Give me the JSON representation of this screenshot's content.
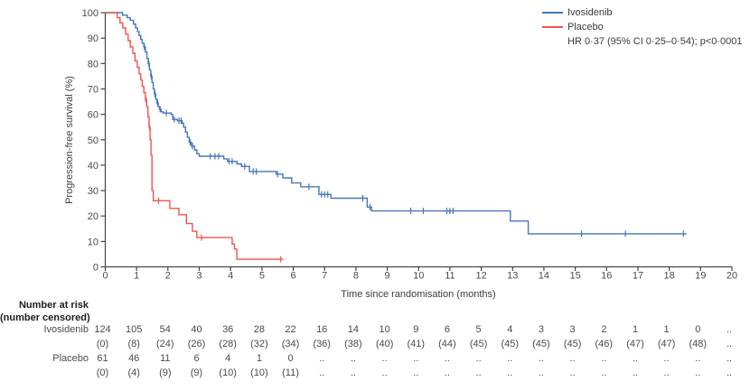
{
  "chart_data": {
    "type": "line",
    "variant": "kaplan-meier-step",
    "title": "",
    "xlabel": "Time since randomisation (months)",
    "ylabel": "Progression-free survival (%)",
    "xlim": [
      0,
      20
    ],
    "ylim": [
      0,
      100
    ],
    "xticks": [
      0,
      1,
      2,
      3,
      4,
      5,
      6,
      7,
      8,
      9,
      10,
      11,
      12,
      13,
      14,
      15,
      16,
      17,
      18,
      19,
      20
    ],
    "yticks": [
      0,
      10,
      20,
      30,
      40,
      50,
      60,
      70,
      80,
      90,
      100
    ],
    "grid": false,
    "legend_position": "top-right",
    "annotation": "HR 0·37 (95% CI 0·25–0·54); p<0·0001",
    "axis_color": "#454545",
    "series": [
      {
        "name": "Ivosidenib",
        "color": "#4577b9",
        "steps": [
          [
            0,
            100
          ],
          [
            0.5,
            100
          ],
          [
            0.55,
            99
          ],
          [
            0.7,
            98
          ],
          [
            0.8,
            97
          ],
          [
            0.9,
            95.5
          ],
          [
            0.97,
            94
          ],
          [
            1.03,
            92.5
          ],
          [
            1.08,
            91
          ],
          [
            1.13,
            89.5
          ],
          [
            1.18,
            88
          ],
          [
            1.23,
            86.5
          ],
          [
            1.28,
            84.5
          ],
          [
            1.33,
            82
          ],
          [
            1.37,
            80
          ],
          [
            1.41,
            77.5
          ],
          [
            1.45,
            75
          ],
          [
            1.49,
            72.5
          ],
          [
            1.53,
            70
          ],
          [
            1.57,
            68
          ],
          [
            1.61,
            66
          ],
          [
            1.65,
            64.5
          ],
          [
            1.69,
            63
          ],
          [
            1.73,
            62
          ],
          [
            1.78,
            61
          ],
          [
            1.85,
            60.5
          ],
          [
            2.1,
            60
          ],
          [
            2.15,
            58
          ],
          [
            2.3,
            57.5
          ],
          [
            2.45,
            56.5
          ],
          [
            2.5,
            55
          ],
          [
            2.56,
            53
          ],
          [
            2.62,
            51
          ],
          [
            2.68,
            49
          ],
          [
            2.75,
            47.5
          ],
          [
            2.85,
            46
          ],
          [
            2.92,
            44.5
          ],
          [
            3.0,
            43.5
          ],
          [
            3.78,
            42.5
          ],
          [
            3.9,
            41.5
          ],
          [
            4.2,
            40.5
          ],
          [
            4.35,
            39.5
          ],
          [
            4.6,
            37.5
          ],
          [
            5.45,
            36.5
          ],
          [
            5.67,
            35
          ],
          [
            5.95,
            33
          ],
          [
            6.24,
            31.5
          ],
          [
            6.82,
            28.5
          ],
          [
            7.2,
            27
          ],
          [
            8.36,
            23.5
          ],
          [
            8.5,
            22
          ],
          [
            12.93,
            18
          ],
          [
            13.5,
            13
          ],
          [
            18.55,
            13
          ]
        ],
        "censors": [
          [
            1.25,
            86.5
          ],
          [
            1.39,
            80
          ],
          [
            1.47,
            75
          ],
          [
            1.59,
            68
          ],
          [
            1.67,
            64.5
          ],
          [
            1.75,
            62
          ],
          [
            1.95,
            60.5
          ],
          [
            2.2,
            58
          ],
          [
            2.35,
            57.5
          ],
          [
            2.42,
            57.5
          ],
          [
            2.71,
            49
          ],
          [
            2.78,
            47.5
          ],
          [
            3.35,
            43.5
          ],
          [
            3.5,
            43.5
          ],
          [
            3.62,
            43.5
          ],
          [
            3.95,
            41.5
          ],
          [
            4.05,
            41.5
          ],
          [
            4.45,
            39.5
          ],
          [
            4.72,
            37.5
          ],
          [
            4.82,
            37.5
          ],
          [
            5.5,
            36.5
          ],
          [
            6.5,
            31.5
          ],
          [
            6.9,
            28.5
          ],
          [
            7.0,
            28.5
          ],
          [
            7.1,
            28.5
          ],
          [
            8.22,
            27
          ],
          [
            8.45,
            23.5
          ],
          [
            9.75,
            22
          ],
          [
            10.15,
            22
          ],
          [
            10.9,
            22
          ],
          [
            11.0,
            22
          ],
          [
            11.1,
            22
          ],
          [
            15.2,
            13
          ],
          [
            16.6,
            13
          ],
          [
            18.45,
            13
          ]
        ]
      },
      {
        "name": "Placebo",
        "color": "#f1544e",
        "steps": [
          [
            0,
            100
          ],
          [
            0.32,
            100
          ],
          [
            0.38,
            98
          ],
          [
            0.47,
            96
          ],
          [
            0.56,
            94
          ],
          [
            0.65,
            91.5
          ],
          [
            0.73,
            89
          ],
          [
            0.8,
            86.5
          ],
          [
            0.88,
            84
          ],
          [
            0.95,
            81
          ],
          [
            1.02,
            78.5
          ],
          [
            1.08,
            76
          ],
          [
            1.13,
            73.5
          ],
          [
            1.18,
            71
          ],
          [
            1.23,
            68.5
          ],
          [
            1.28,
            66
          ],
          [
            1.32,
            63
          ],
          [
            1.36,
            59
          ],
          [
            1.4,
            55
          ],
          [
            1.43,
            50
          ],
          [
            1.46,
            44
          ],
          [
            1.49,
            30
          ],
          [
            1.53,
            26
          ],
          [
            2.06,
            23
          ],
          [
            2.35,
            20.5
          ],
          [
            2.59,
            17
          ],
          [
            2.78,
            14
          ],
          [
            2.92,
            11.5
          ],
          [
            4.05,
            9
          ],
          [
            4.12,
            7
          ],
          [
            4.2,
            3
          ],
          [
            5.68,
            3
          ]
        ],
        "censors": [
          [
            1.29,
            66
          ],
          [
            1.41,
            55
          ],
          [
            1.7,
            26
          ],
          [
            3.07,
            11.5
          ],
          [
            5.6,
            3
          ]
        ]
      }
    ]
  },
  "risk_table": {
    "header_line1": "Number at risk",
    "header_line2": "(number censored)",
    "columns_months": [
      0,
      1,
      2,
      3,
      4,
      5,
      6,
      7,
      8,
      9,
      10,
      11,
      12,
      13,
      14,
      15,
      16,
      17,
      18,
      19,
      20
    ],
    "rows": [
      {
        "label": "Ivosidenib",
        "values": [
          "124",
          "105",
          "54",
          "40",
          "36",
          "28",
          "22",
          "16",
          "14",
          "10",
          "9",
          "6",
          "5",
          "4",
          "3",
          "3",
          "2",
          "1",
          "1",
          "0",
          ".."
        ]
      },
      {
        "label": "",
        "values": [
          "(0)",
          "(8)",
          "(24)",
          "(26)",
          "(28)",
          "(32)",
          "(34)",
          "(36)",
          "(38)",
          "(40)",
          "(41)",
          "(44)",
          "(45)",
          "(45)",
          "(45)",
          "(45)",
          "(46)",
          "(47)",
          "(47)",
          "(48)",
          ".."
        ]
      },
      {
        "label": "Placebo",
        "values": [
          "61",
          "46",
          "11",
          "6",
          "4",
          "1",
          "0",
          "..",
          "..",
          "..",
          "..",
          "..",
          "..",
          "..",
          "..",
          "..",
          "..",
          "..",
          "..",
          "..",
          ".."
        ]
      },
      {
        "label": "",
        "values": [
          "(0)",
          "(4)",
          "(9)",
          "(9)",
          "(10)",
          "(10)",
          "(11)",
          "..",
          "..",
          "..",
          "..",
          "..",
          "..",
          "..",
          "..",
          "..",
          "..",
          "..",
          "..",
          "..",
          ".."
        ]
      }
    ]
  }
}
